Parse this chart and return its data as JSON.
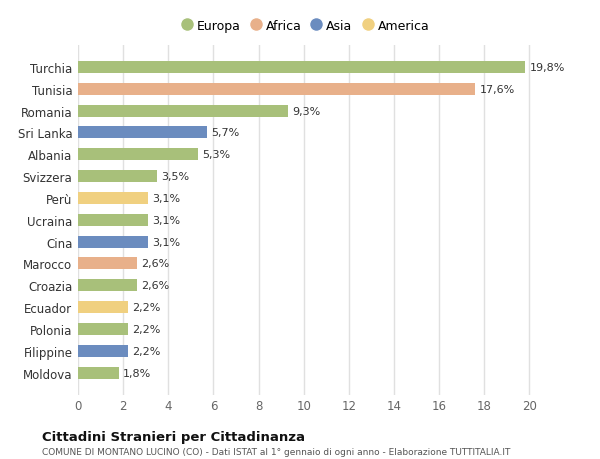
{
  "countries": [
    "Turchia",
    "Tunisia",
    "Romania",
    "Sri Lanka",
    "Albania",
    "Svizzera",
    "Perù",
    "Ucraina",
    "Cina",
    "Marocco",
    "Croazia",
    "Ecuador",
    "Polonia",
    "Filippine",
    "Moldova"
  ],
  "values": [
    19.8,
    17.6,
    9.3,
    5.7,
    5.3,
    3.5,
    3.1,
    3.1,
    3.1,
    2.6,
    2.6,
    2.2,
    2.2,
    2.2,
    1.8
  ],
  "labels": [
    "19,8%",
    "17,6%",
    "9,3%",
    "5,7%",
    "5,3%",
    "3,5%",
    "3,1%",
    "3,1%",
    "3,1%",
    "2,6%",
    "2,6%",
    "2,2%",
    "2,2%",
    "2,2%",
    "1,8%"
  ],
  "colors": [
    "#a8c07a",
    "#e8b08a",
    "#a8c07a",
    "#6b8cbf",
    "#a8c07a",
    "#a8c07a",
    "#f0d080",
    "#a8c07a",
    "#6b8cbf",
    "#e8b08a",
    "#a8c07a",
    "#f0d080",
    "#a8c07a",
    "#6b8cbf",
    "#a8c07a"
  ],
  "legend_labels": [
    "Europa",
    "Africa",
    "Asia",
    "America"
  ],
  "legend_colors": [
    "#a8c07a",
    "#e8b08a",
    "#6b8cbf",
    "#f0d080"
  ],
  "title": "Cittadini Stranieri per Cittadinanza",
  "subtitle": "COMUNE DI MONTANO LUCINO (CO) - Dati ISTAT al 1° gennaio di ogni anno - Elaborazione TUTTITALIA.IT",
  "xlim": [
    0,
    21
  ],
  "xticks": [
    0,
    2,
    4,
    6,
    8,
    10,
    12,
    14,
    16,
    18,
    20
  ],
  "background_color": "#ffffff",
  "plot_bg_color": "#ffffff",
  "grid_color": "#e0e0e0",
  "bar_height": 0.55
}
